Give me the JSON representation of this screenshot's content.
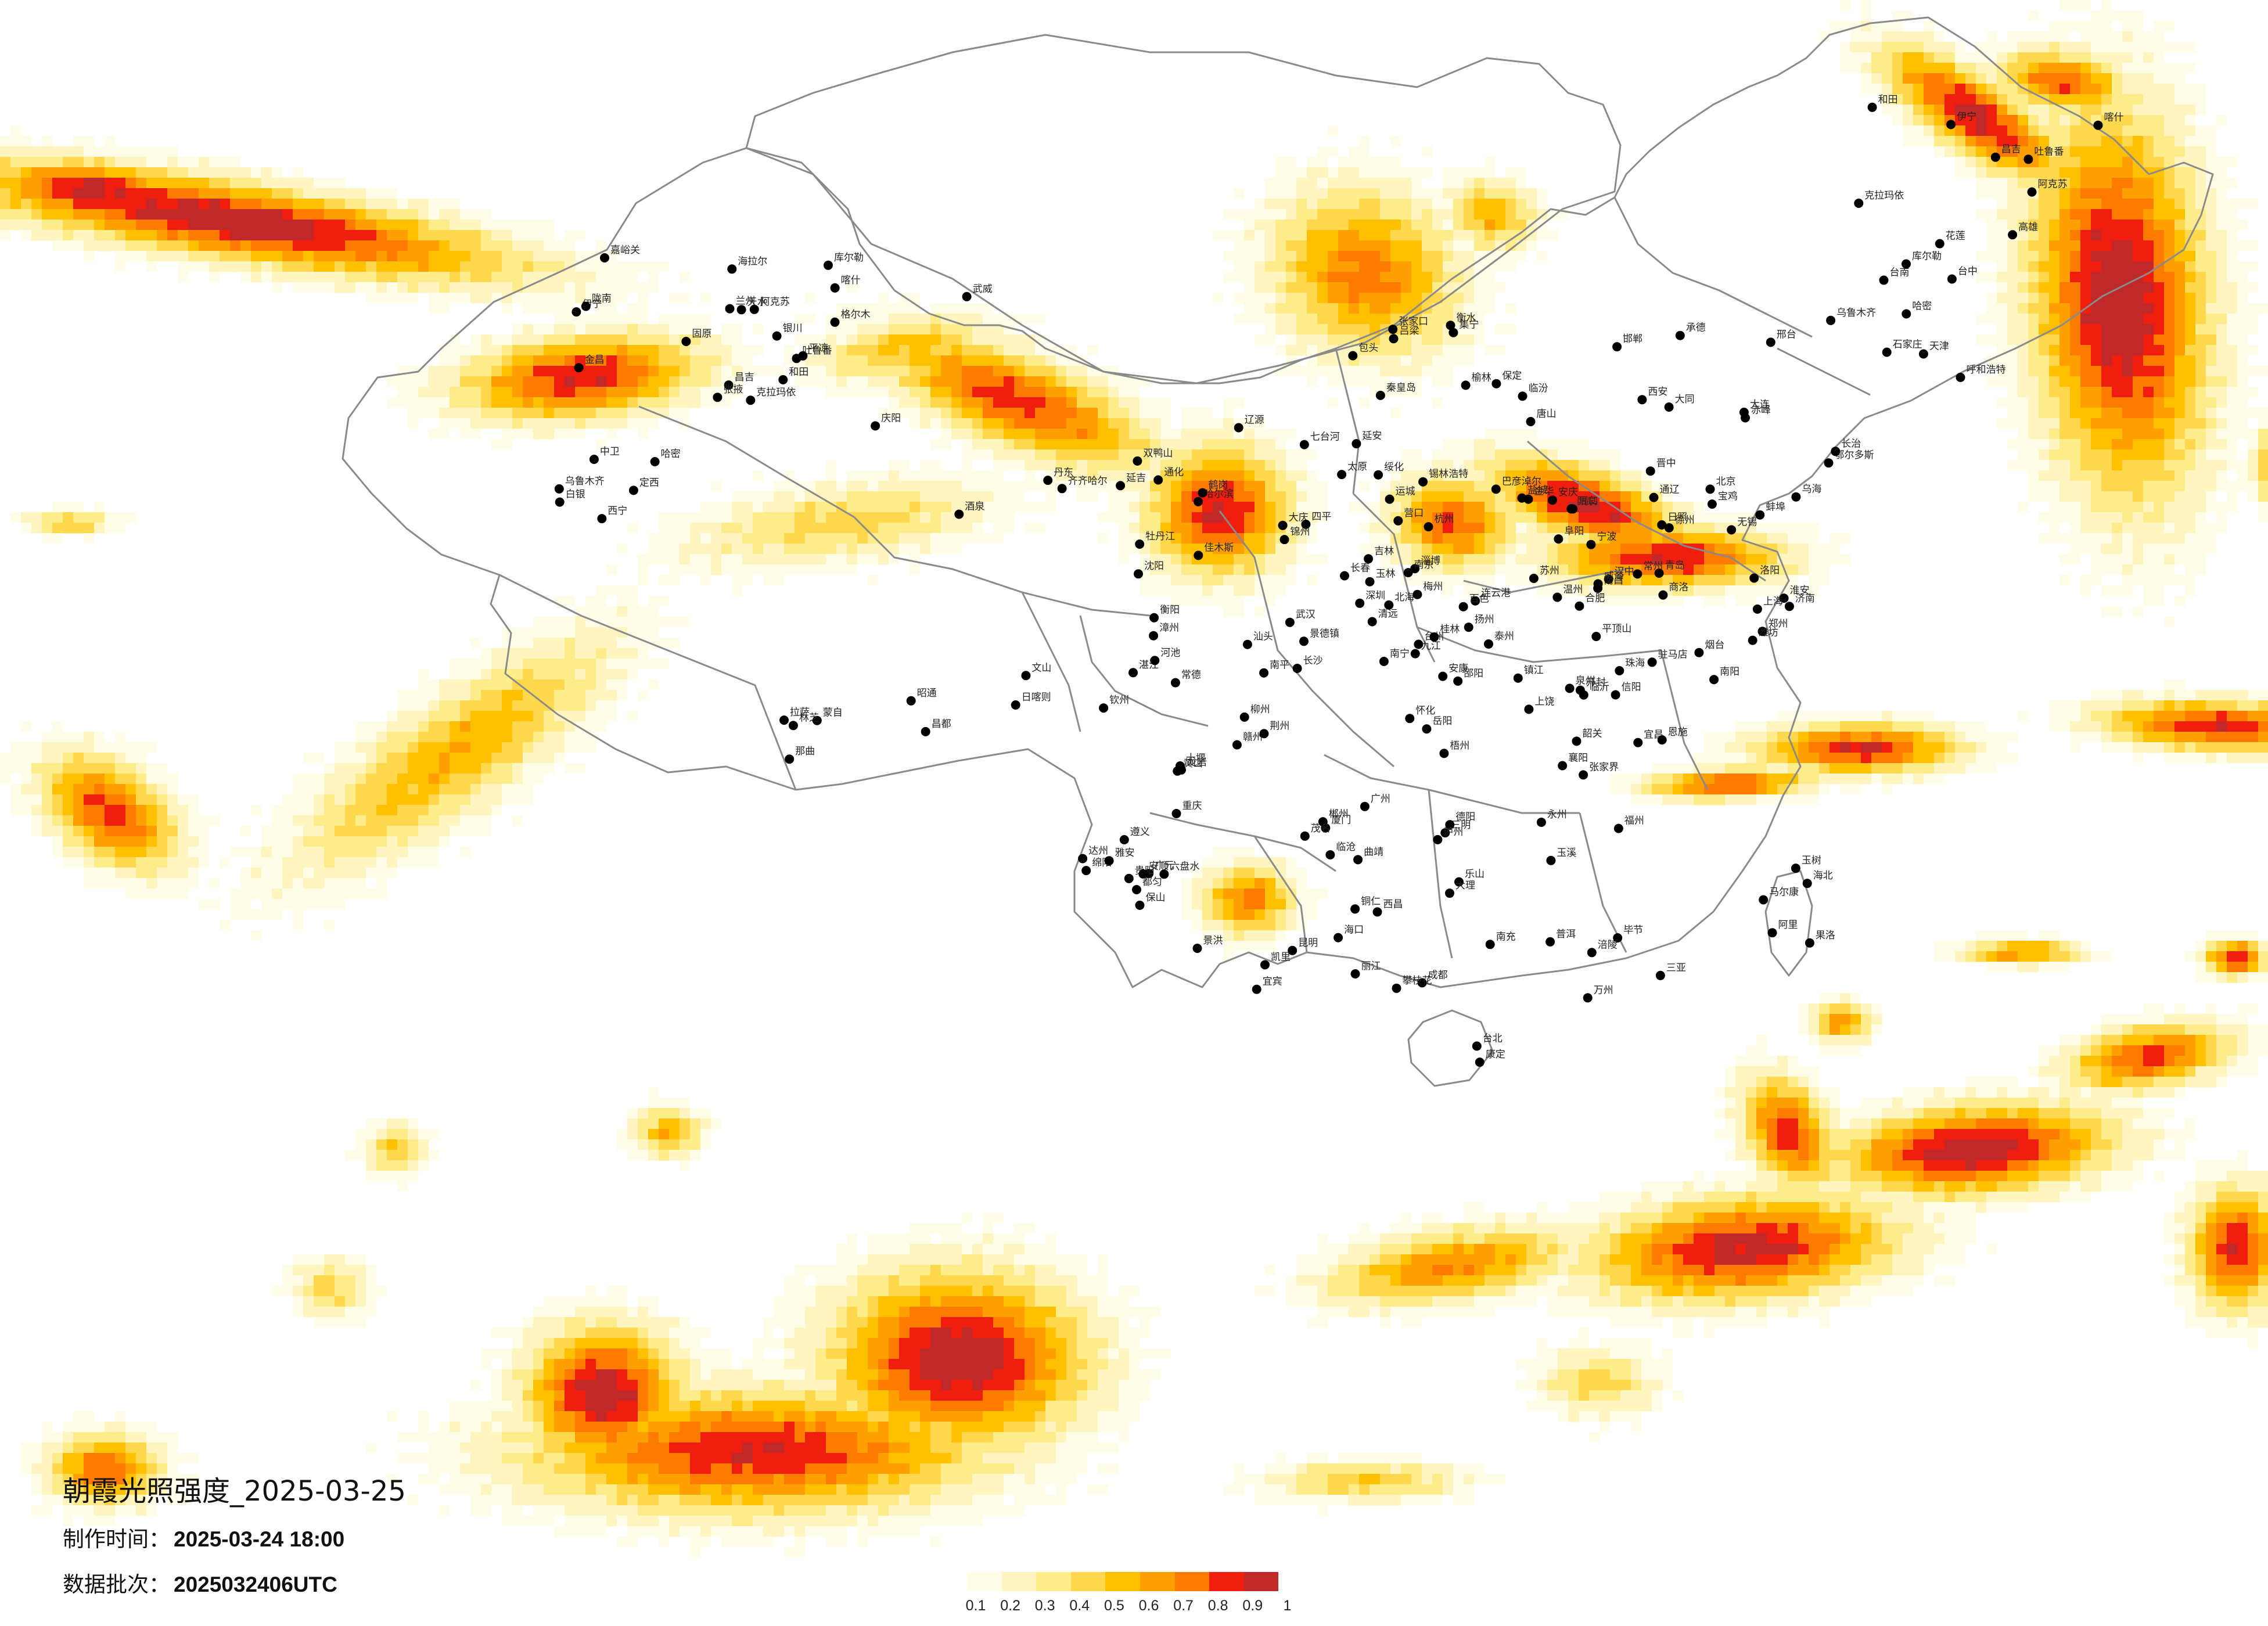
{
  "map": {
    "title": "朝霞光照强度_2025-03-25",
    "made_time_label": "制作时间：",
    "made_time_value": "2025-03-24 18:00",
    "batch_label": "数据批次：",
    "batch_value": "2025032406UTC"
  },
  "legend": {
    "ticks": [
      "0.1",
      "0.2",
      "0.3",
      "0.4",
      "0.5",
      "0.6",
      "0.7",
      "0.8",
      "0.9",
      "1"
    ],
    "colors": [
      "#FFFDE8",
      "#FFF5C0",
      "#FFEC8A",
      "#FFD84D",
      "#FFC000",
      "#FFA000",
      "#FF7A00",
      "#F01E0E",
      "#C0282A"
    ]
  },
  "cities": [
    "克拉玛依",
    "伊宁",
    "昌吉",
    "乌鲁木齐",
    "吐鲁番",
    "哈密",
    "库尔勒",
    "阿克苏",
    "喀什",
    "和田",
    "嘉峪关",
    "酒泉",
    "金昌",
    "武威",
    "张掖",
    "格尔木",
    "西宁",
    "兰州",
    "银川",
    "中卫",
    "固原",
    "白银",
    "定西",
    "天水",
    "平凉",
    "庆阳",
    "陇南",
    "海拉尔",
    "齐齐哈尔",
    "大庆",
    "绥化",
    "哈尔滨",
    "佳木斯",
    "鹤岗",
    "双鸭山",
    "七台河",
    "牡丹江",
    "长春",
    "吉林",
    "四平",
    "辽源",
    "通化",
    "延吉",
    "锦州",
    "沈阳",
    "丹东",
    "大连",
    "营口",
    "通辽",
    "赤峰",
    "锡林浩特",
    "呼和浩特",
    "包头",
    "鄂尔多斯",
    "乌海",
    "巴彦淖尔",
    "集宁",
    "张家口",
    "北京",
    "天津",
    "承德",
    "唐山",
    "秦皇岛",
    "保定",
    "石家庄",
    "衡水",
    "邢台",
    "邯郸",
    "大同",
    "太原",
    "晋中",
    "阳泉",
    "长治",
    "临汾",
    "运城",
    "吕梁",
    "榆林",
    "延安",
    "西安",
    "宝鸡",
    "汉中",
    "安康",
    "商洛",
    "郑州",
    "开封",
    "洛阳",
    "平顶山",
    "南阳",
    "信阳",
    "驻马店",
    "周口",
    "济南",
    "青岛",
    "烟台",
    "威海",
    "潍坊",
    "淄博",
    "临沂",
    "日照",
    "徐州",
    "连云港",
    "盐城",
    "淮安",
    "南京",
    "扬州",
    "泰州",
    "镇江",
    "常州",
    "无锡",
    "苏州",
    "上海",
    "杭州",
    "宁波",
    "温州",
    "金华",
    "台州",
    "合肥",
    "蚌埠",
    "阜阳",
    "安庆",
    "黄山",
    "南昌",
    "九江",
    "景德镇",
    "上饶",
    "赣州",
    "福州",
    "厦门",
    "泉州",
    "漳州",
    "龙岩",
    "三明",
    "南平",
    "武汉",
    "宜昌",
    "襄阳",
    "荆州",
    "十堰",
    "恩施",
    "长沙",
    "岳阳",
    "常德",
    "张家界",
    "怀化",
    "邵阳",
    "衡阳",
    "郴州",
    "永州",
    "广州",
    "深圳",
    "珠海",
    "汕头",
    "湛江",
    "茂名",
    "韶关",
    "梅州",
    "清远",
    "南宁",
    "柳州",
    "桂林",
    "梧州",
    "北海",
    "钦州",
    "玉林",
    "百色",
    "河池",
    "海口",
    "三亚",
    "重庆",
    "万州",
    "涪陵",
    "成都",
    "绵阳",
    "德阳",
    "乐山",
    "宜宾",
    "泸州",
    "南充",
    "达州",
    "广元",
    "雅安",
    "西昌",
    "攀枝花",
    "贵阳",
    "遵义",
    "六盘水",
    "安顺",
    "都匀",
    "凯里",
    "铜仁",
    "毕节",
    "昆明",
    "曲靖",
    "玉溪",
    "大理",
    "丽江",
    "保山",
    "临沧",
    "普洱",
    "景洪",
    "蒙自",
    "文山",
    "昭通",
    "拉萨",
    "日喀则",
    "林芝",
    "昌都",
    "那曲",
    "阿里",
    "玉树",
    "果洛",
    "海北",
    "马尔康",
    "康定",
    "台北",
    "台中",
    "台南",
    "高雄",
    "花莲"
  ]
}
